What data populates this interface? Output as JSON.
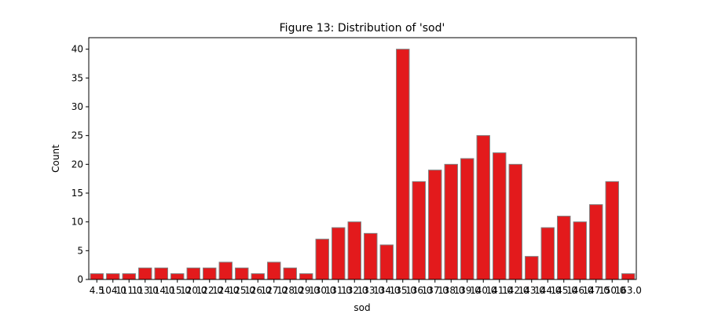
{
  "chart_data": {
    "type": "bar",
    "title": "Figure 13: Distribution of 'sod'",
    "xlabel": "sod",
    "ylabel": "Count",
    "categories": [
      "4.5",
      "104.0",
      "111.0",
      "113.0",
      "114.0",
      "115.0",
      "120.0",
      "122.0",
      "124.0",
      "125.0",
      "126.0",
      "127.0",
      "128.0",
      "129.0",
      "130.0",
      "131.0",
      "132.0",
      "133.0",
      "134.0",
      "135.0",
      "136.0",
      "137.0",
      "138.0",
      "139.0",
      "140.0",
      "141.0",
      "142.0",
      "143.0",
      "144.0",
      "145.0",
      "146.0",
      "147.0",
      "150.0",
      "163.0"
    ],
    "values": [
      1,
      1,
      1,
      2,
      2,
      1,
      2,
      2,
      3,
      2,
      1,
      3,
      2,
      1,
      7,
      9,
      10,
      8,
      6,
      40,
      17,
      19,
      20,
      21,
      25,
      22,
      20,
      4,
      9,
      11,
      10,
      13,
      17,
      1
    ],
    "ylim": [
      0,
      42
    ],
    "yticks": [
      0,
      5,
      10,
      15,
      20,
      25,
      30,
      35,
      40
    ],
    "bar_color": "#e31a1c",
    "bar_edge_color": "#7f7f7f",
    "grid": false,
    "legend": "none"
  }
}
